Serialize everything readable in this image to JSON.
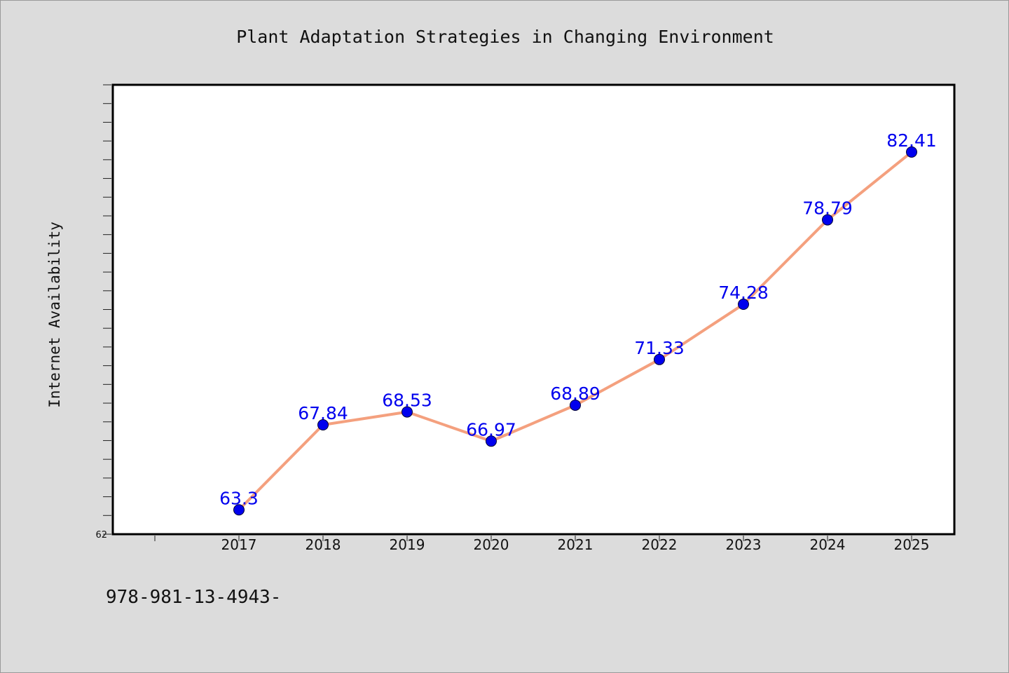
{
  "chart_data": {
    "type": "line",
    "title": "Plant Adaptation Strategies in Changing Environment",
    "xlabel": "",
    "ylabel": "Internet Availability",
    "categories": [
      "2017",
      "2018",
      "2019",
      "2020",
      "2021",
      "2022",
      "2023",
      "2024",
      "2025"
    ],
    "series": [
      {
        "values": [
          63.3,
          67.84,
          68.53,
          66.97,
          68.89,
          71.33,
          74.28,
          78.79,
          82.41
        ],
        "labels": [
          "63.3",
          "67.84",
          "68.53",
          "66.97",
          "68.89",
          "71.33",
          "74.28",
          "78.79",
          "82.41"
        ]
      }
    ],
    "ylim": [
      62,
      86
    ],
    "yticks_labeled": [
      "62"
    ],
    "grid": false,
    "legend": "none",
    "colors": {
      "line": "#f4a07e",
      "marker": "#0000ee",
      "marker_edge": "#000033",
      "data_label": "#0000ee",
      "plot_bg": "#ffffff",
      "figure_bg": "#dcdcdc"
    }
  },
  "footnote": "978-981-13-4943-"
}
